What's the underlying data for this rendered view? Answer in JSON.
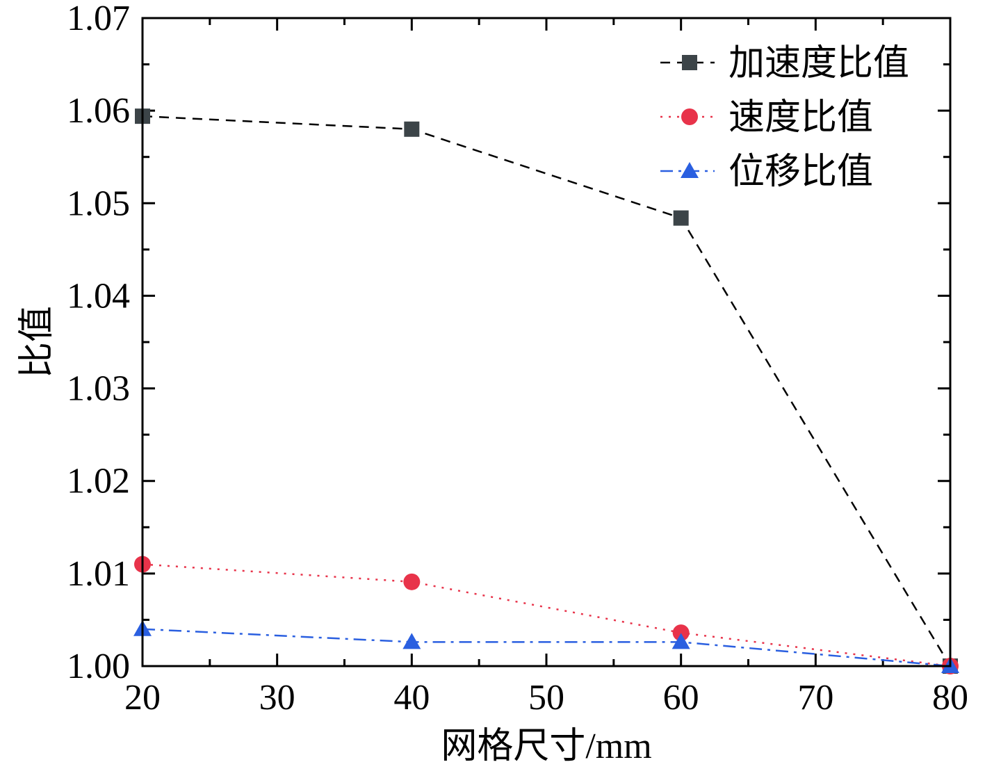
{
  "chart_data": {
    "type": "line",
    "title": "",
    "xlabel": "网格尺寸/mm",
    "ylabel": "比值",
    "xlim": [
      20,
      80
    ],
    "ylim": [
      1.0,
      1.07
    ],
    "x_ticks": [
      20,
      30,
      40,
      50,
      60,
      70,
      80
    ],
    "x_tick_labels": [
      "20",
      "30",
      "40",
      "50",
      "60",
      "70",
      "80"
    ],
    "y_ticks": [
      1.0,
      1.01,
      1.02,
      1.03,
      1.04,
      1.05,
      1.06,
      1.07
    ],
    "y_tick_labels": [
      "1.00",
      "1.01",
      "1.02",
      "1.03",
      "1.04",
      "1.05",
      "1.06",
      "1.07"
    ],
    "grid": false,
    "legend_position": "top-right",
    "x": [
      20,
      40,
      60,
      80
    ],
    "series": [
      {
        "name": "加速度比值",
        "values": [
          1.0594,
          1.058,
          1.0484,
          1.0
        ],
        "color": "#3c4448",
        "line_color": "#000000",
        "line_style": "dashed",
        "marker": "square"
      },
      {
        "name": "速度比值",
        "values": [
          1.011,
          1.0091,
          1.0036,
          1.0
        ],
        "color": "#e8334a",
        "line_color": "#e8334a",
        "line_style": "dotted",
        "marker": "circle"
      },
      {
        "name": "位移比值",
        "values": [
          1.004,
          1.0026,
          1.0026,
          1.0
        ],
        "color": "#2a5fe0",
        "line_color": "#2a5fe0",
        "line_style": "dashdot",
        "marker": "triangle"
      }
    ]
  }
}
